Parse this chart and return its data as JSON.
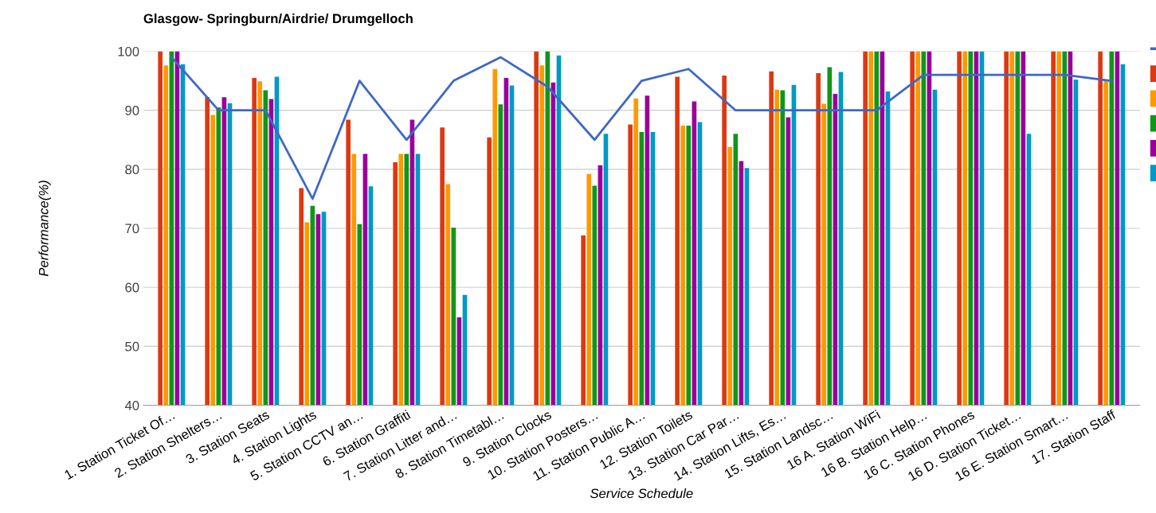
{
  "chart_data": {
    "type": "bar",
    "title": "Glasgow- Springburn/Airdrie/ Drumgelloch",
    "xlabel": "Service Schedule",
    "ylabel": "Performance(%)",
    "categories": [
      "1. Station Ticket Of…",
      "2. Station Shelters…",
      "3. Station Seats",
      "4. Station Lights",
      "5. Station CCTV an…",
      "6. Station Graffiti",
      "7. Station Litter and…",
      "8. Station Timetabl…",
      "9. Station Clocks",
      "10. Station Posters…",
      "11. Station Public A…",
      "12. Station Toilets",
      "13. Station Car Par…",
      "14. Station Lifts, Es…",
      "15. Station Landsc…",
      "16 A. Station WiFi",
      "16 B. Station Help…",
      "16 C. Station Phones",
      "16 D. Station Ticket…",
      "16 E. Station Smart…",
      "17. Station Staff"
    ],
    "series": [
      {
        "type": "line",
        "color": "#3e67c6",
        "values": [
          99,
          90,
          90,
          75,
          95,
          85,
          95,
          99,
          94,
          85,
          95,
          97,
          90,
          90,
          90,
          90,
          96,
          96,
          96,
          96,
          95
        ]
      },
      {
        "color": "#dc3912",
        "values": [
          100,
          92.2,
          95.5,
          76.8,
          88.4,
          81.2,
          87.1,
          85.4,
          100,
          68.8,
          87.6,
          95.7,
          95.9,
          96.6,
          96.3,
          100,
          100,
          100,
          100,
          100,
          100
        ]
      },
      {
        "color": "#ff9900",
        "values": [
          97.6,
          89.2,
          94.9,
          71,
          82.6,
          82.6,
          77.5,
          97,
          97.6,
          79.2,
          92,
          87.4,
          83.8,
          93.5,
          91.1,
          100,
          100,
          100,
          100,
          100,
          95
        ]
      },
      {
        "color": "#109618",
        "values": [
          100,
          90.5,
          93.4,
          73.8,
          70.7,
          82.6,
          70.1,
          91,
          100,
          77.2,
          86.3,
          87.4,
          86,
          93.4,
          97.3,
          100,
          100,
          100,
          100,
          100,
          100
        ]
      },
      {
        "color": "#990099",
        "values": [
          100,
          92.2,
          91.9,
          72.4,
          82.6,
          88.4,
          54.9,
          95.5,
          94.7,
          80.7,
          92.5,
          91.5,
          81.4,
          88.8,
          92.8,
          100,
          100,
          100,
          100,
          100,
          100
        ]
      },
      {
        "color": "#0099c6",
        "values": [
          97.8,
          91.2,
          95.7,
          72.8,
          77.1,
          82.6,
          58.7,
          94.2,
          99.3,
          86,
          86.3,
          88,
          80.2,
          94.3,
          96.5,
          93.2,
          93.5,
          100,
          86,
          95.2,
          97.8
        ]
      }
    ],
    "ylim": [
      40,
      100
    ],
    "yticks": [
      40,
      50,
      60,
      70,
      80,
      90,
      100
    ],
    "grid": "y"
  }
}
